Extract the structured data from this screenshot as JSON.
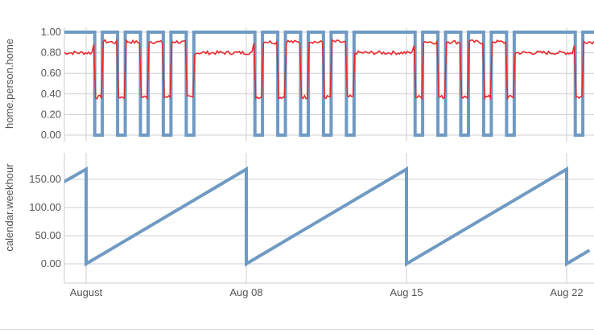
{
  "colors": {
    "series_blue": "#6f9ac4",
    "series_red": "#e8292c",
    "grid": "#cfcfcf",
    "axis": "#cccccc",
    "text": "#555555"
  },
  "chart_data": [
    {
      "type": "line",
      "ylabel": "home.person.home",
      "ylim": [
        0,
        1
      ],
      "yticks": [
        "1.00",
        "0.80",
        "0.60",
        "0.40",
        "0.20",
        "0.00"
      ],
      "x_range": [
        "2023-07-31",
        "2023-08-23"
      ],
      "x_unit": "days",
      "grid": true,
      "series": [
        {
          "color": "#6f9ac4",
          "style": "step",
          "points": [
            [
              "2023-07-31 00:00",
              1.0
            ],
            [
              "2023-08-01 09:00",
              1.0
            ],
            [
              "2023-08-01 09:00",
              0.0
            ],
            [
              "2023-08-01 17:00",
              0.0
            ],
            [
              "2023-08-01 17:00",
              1.0
            ],
            [
              "2023-08-02 09:00",
              1.0
            ],
            [
              "2023-08-02 09:00",
              0.0
            ],
            [
              "2023-08-02 17:00",
              0.0
            ],
            [
              "2023-08-02 17:00",
              1.0
            ],
            [
              "2023-08-03 09:00",
              1.0
            ],
            [
              "2023-08-03 09:00",
              0.0
            ],
            [
              "2023-08-03 17:00",
              0.0
            ],
            [
              "2023-08-03 17:00",
              1.0
            ],
            [
              "2023-08-04 09:00",
              1.0
            ],
            [
              "2023-08-04 09:00",
              0.0
            ],
            [
              "2023-08-04 17:00",
              0.0
            ],
            [
              "2023-08-04 17:00",
              1.0
            ],
            [
              "2023-08-05 09:00",
              1.0
            ],
            [
              "2023-08-05 09:00",
              0.0
            ],
            [
              "2023-08-05 17:00",
              0.0
            ],
            [
              "2023-08-05 17:00",
              1.0
            ],
            [
              "2023-08-08 09:00",
              1.0
            ],
            [
              "2023-08-08 09:00",
              0.0
            ],
            [
              "2023-08-08 17:00",
              0.0
            ],
            [
              "2023-08-08 17:00",
              1.0
            ],
            [
              "2023-08-09 09:00",
              1.0
            ],
            [
              "2023-08-09 09:00",
              0.0
            ],
            [
              "2023-08-09 17:00",
              0.0
            ],
            [
              "2023-08-09 17:00",
              1.0
            ],
            [
              "2023-08-10 09:00",
              1.0
            ],
            [
              "2023-08-10 09:00",
              0.0
            ],
            [
              "2023-08-10 17:00",
              0.0
            ],
            [
              "2023-08-10 17:00",
              1.0
            ],
            [
              "2023-08-11 09:00",
              1.0
            ],
            [
              "2023-08-11 09:00",
              0.0
            ],
            [
              "2023-08-11 17:00",
              0.0
            ],
            [
              "2023-08-11 17:00",
              1.0
            ],
            [
              "2023-08-12 09:00",
              1.0
            ],
            [
              "2023-08-12 09:00",
              0.0
            ],
            [
              "2023-08-12 17:00",
              0.0
            ],
            [
              "2023-08-12 17:00",
              1.0
            ],
            [
              "2023-08-15 09:00",
              1.0
            ],
            [
              "2023-08-15 09:00",
              0.0
            ],
            [
              "2023-08-15 17:00",
              0.0
            ],
            [
              "2023-08-15 17:00",
              1.0
            ],
            [
              "2023-08-16 09:00",
              1.0
            ],
            [
              "2023-08-16 09:00",
              0.0
            ],
            [
              "2023-08-16 17:00",
              0.0
            ],
            [
              "2023-08-16 17:00",
              1.0
            ],
            [
              "2023-08-17 09:00",
              1.0
            ],
            [
              "2023-08-17 09:00",
              0.0
            ],
            [
              "2023-08-17 17:00",
              0.0
            ],
            [
              "2023-08-17 17:00",
              1.0
            ],
            [
              "2023-08-18 09:00",
              1.0
            ],
            [
              "2023-08-18 09:00",
              0.0
            ],
            [
              "2023-08-18 17:00",
              0.0
            ],
            [
              "2023-08-18 17:00",
              1.0
            ],
            [
              "2023-08-19 09:00",
              1.0
            ],
            [
              "2023-08-19 09:00",
              0.0
            ],
            [
              "2023-08-19 17:00",
              0.0
            ],
            [
              "2023-08-19 17:00",
              1.0
            ],
            [
              "2023-08-22 09:00",
              1.0
            ],
            [
              "2023-08-22 09:00",
              0.0
            ],
            [
              "2023-08-22 17:00",
              0.0
            ],
            [
              "2023-08-22 17:00",
              1.0
            ],
            [
              "2023-08-23 09:00",
              1.0
            ],
            [
              "2023-08-23 09:00",
              0.0
            ]
          ]
        },
        {
          "color": "#e8292c",
          "style": "noisy",
          "points": [
            [
              "2023-07-31 00:00",
              0.8
            ],
            [
              "2023-08-01 06:00",
              0.8
            ],
            [
              "2023-08-01 08:00",
              0.88
            ],
            [
              "2023-08-01 10:00",
              0.37
            ],
            [
              "2023-08-01 16:00",
              0.37
            ],
            [
              "2023-08-01 18:00",
              0.91
            ],
            [
              "2023-08-02 08:00",
              0.9
            ],
            [
              "2023-08-02 10:00",
              0.37
            ],
            [
              "2023-08-02 16:00",
              0.37
            ],
            [
              "2023-08-02 18:00",
              0.91
            ],
            [
              "2023-08-03 08:00",
              0.9
            ],
            [
              "2023-08-03 10:00",
              0.37
            ],
            [
              "2023-08-03 16:00",
              0.37
            ],
            [
              "2023-08-03 18:00",
              0.91
            ],
            [
              "2023-08-04 08:00",
              0.9
            ],
            [
              "2023-08-04 10:00",
              0.37
            ],
            [
              "2023-08-04 16:00",
              0.37
            ],
            [
              "2023-08-04 18:00",
              0.91
            ],
            [
              "2023-08-05 08:00",
              0.9
            ],
            [
              "2023-08-05 10:00",
              0.37
            ],
            [
              "2023-08-05 16:00",
              0.37
            ],
            [
              "2023-08-05 18:00",
              0.8
            ],
            [
              "2023-08-08 06:00",
              0.8
            ],
            [
              "2023-08-08 08:00",
              0.88
            ],
            [
              "2023-08-08 10:00",
              0.37
            ],
            [
              "2023-08-08 16:00",
              0.37
            ],
            [
              "2023-08-08 18:00",
              0.91
            ],
            [
              "2023-08-09 08:00",
              0.9
            ],
            [
              "2023-08-09 10:00",
              0.37
            ],
            [
              "2023-08-09 16:00",
              0.37
            ],
            [
              "2023-08-09 18:00",
              0.91
            ],
            [
              "2023-08-10 08:00",
              0.9
            ],
            [
              "2023-08-10 10:00",
              0.37
            ],
            [
              "2023-08-10 16:00",
              0.37
            ],
            [
              "2023-08-10 18:00",
              0.91
            ],
            [
              "2023-08-11 08:00",
              0.9
            ],
            [
              "2023-08-11 10:00",
              0.37
            ],
            [
              "2023-08-11 16:00",
              0.37
            ],
            [
              "2023-08-11 18:00",
              0.91
            ],
            [
              "2023-08-12 08:00",
              0.9
            ],
            [
              "2023-08-12 10:00",
              0.37
            ],
            [
              "2023-08-12 16:00",
              0.37
            ],
            [
              "2023-08-12 18:00",
              0.8
            ],
            [
              "2023-08-15 06:00",
              0.8
            ],
            [
              "2023-08-15 08:00",
              0.88
            ],
            [
              "2023-08-15 10:00",
              0.37
            ],
            [
              "2023-08-15 16:00",
              0.37
            ],
            [
              "2023-08-15 18:00",
              0.91
            ],
            [
              "2023-08-16 08:00",
              0.9
            ],
            [
              "2023-08-16 10:00",
              0.37
            ],
            [
              "2023-08-16 16:00",
              0.37
            ],
            [
              "2023-08-16 18:00",
              0.91
            ],
            [
              "2023-08-17 08:00",
              0.9
            ],
            [
              "2023-08-17 10:00",
              0.37
            ],
            [
              "2023-08-17 16:00",
              0.37
            ],
            [
              "2023-08-17 18:00",
              0.91
            ],
            [
              "2023-08-18 08:00",
              0.9
            ],
            [
              "2023-08-18 10:00",
              0.37
            ],
            [
              "2023-08-18 16:00",
              0.37
            ],
            [
              "2023-08-18 18:00",
              0.91
            ],
            [
              "2023-08-19 08:00",
              0.9
            ],
            [
              "2023-08-19 10:00",
              0.37
            ],
            [
              "2023-08-19 16:00",
              0.37
            ],
            [
              "2023-08-19 18:00",
              0.8
            ],
            [
              "2023-08-22 06:00",
              0.8
            ],
            [
              "2023-08-22 08:00",
              0.88
            ],
            [
              "2023-08-22 10:00",
              0.37
            ],
            [
              "2023-08-22 16:00",
              0.37
            ],
            [
              "2023-08-22 18:00",
              0.91
            ],
            [
              "2023-08-23 08:00",
              0.9
            ],
            [
              "2023-08-23 10:00",
              0.37
            ]
          ]
        }
      ]
    },
    {
      "type": "line",
      "ylabel": "calendar.weekhour",
      "ylim": [
        -10,
        185
      ],
      "yticks": [
        "150.00",
        "100.00",
        "50.00",
        "0.00"
      ],
      "x_range": [
        "2023-07-31",
        "2023-08-23"
      ],
      "grid": true,
      "series": [
        {
          "color": "#6f9ac4",
          "points": [
            [
              "2023-07-31 00:00",
              145
            ],
            [
              "2023-08-01 00:00",
              168
            ],
            [
              "2023-08-01 00:00",
              0
            ],
            [
              "2023-08-08 00:00",
              168
            ],
            [
              "2023-08-08 00:00",
              0
            ],
            [
              "2023-08-15 00:00",
              168
            ],
            [
              "2023-08-15 00:00",
              0
            ],
            [
              "2023-08-22 00:00",
              168
            ],
            [
              "2023-08-22 00:00",
              0
            ],
            [
              "2023-08-23 00:00",
              24
            ]
          ]
        }
      ]
    }
  ],
  "x_axis": {
    "ticks": [
      {
        "date": "2023-08-01",
        "label": "August"
      },
      {
        "date": "2023-08-08",
        "label": "Aug 08"
      },
      {
        "date": "2023-08-15",
        "label": "Aug 15"
      },
      {
        "date": "2023-08-22",
        "label": "Aug 22"
      }
    ]
  }
}
